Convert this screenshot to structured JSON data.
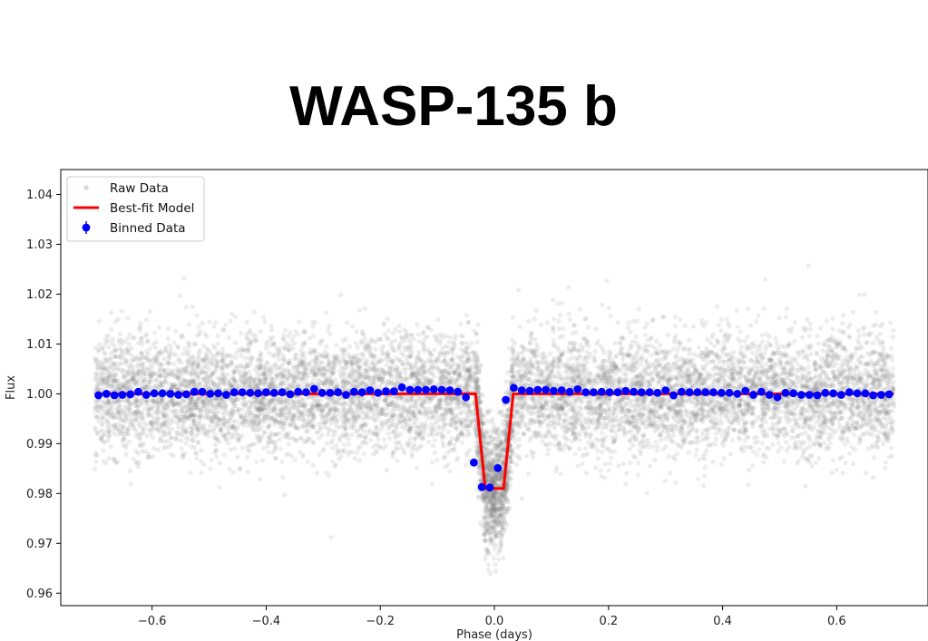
{
  "title": "WASP-135 b",
  "chart_data": {
    "type": "scatter",
    "title": "WASP-135 b",
    "xlabel": "Phase (days)",
    "ylabel": "Flux",
    "xlim": [
      -0.76,
      0.76
    ],
    "ylim": [
      0.9575,
      1.045
    ],
    "xticks": [
      -0.6,
      -0.4,
      -0.2,
      0.0,
      0.2,
      0.4,
      0.6
    ],
    "xtick_labels": [
      "−0.6",
      "−0.4",
      "−0.2",
      "0.0",
      "0.2",
      "0.4",
      "0.6"
    ],
    "yticks": [
      0.96,
      0.97,
      0.98,
      0.99,
      1.0,
      1.01,
      1.02,
      1.03,
      1.04
    ],
    "ytick_labels": [
      "0.96",
      "0.97",
      "0.98",
      "0.99",
      "1.00",
      "1.01",
      "1.02",
      "1.03",
      "1.04"
    ],
    "grid": false,
    "legend_position": "top-left",
    "transit": {
      "depth": 0.019,
      "center": 0.0,
      "ingress_start": 0.033,
      "flat_half_width": 0.016
    },
    "series": [
      {
        "name": "Raw Data",
        "kind": "scatter",
        "color": "#808080",
        "x_range": [
          -0.7,
          0.7
        ],
        "baseline": 1.0,
        "scatter_sd": 0.006
      },
      {
        "name": "Best-fit Model",
        "kind": "line",
        "color": "#ff0000",
        "x": [
          -0.7,
          -0.033,
          -0.016,
          0.016,
          0.033,
          0.7
        ],
        "y": [
          1.0,
          1.0,
          0.981,
          0.981,
          1.0,
          1.0
        ]
      },
      {
        "name": "Binned Data",
        "kind": "errorbar",
        "color": "#0000ff",
        "x": [
          -0.694,
          -0.68,
          -0.666,
          -0.652,
          -0.638,
          -0.624,
          -0.61,
          -0.596,
          -0.582,
          -0.568,
          -0.554,
          -0.54,
          -0.526,
          -0.512,
          -0.498,
          -0.484,
          -0.47,
          -0.456,
          -0.442,
          -0.428,
          -0.414,
          -0.4,
          -0.386,
          -0.372,
          -0.358,
          -0.344,
          -0.33,
          -0.316,
          -0.302,
          -0.288,
          -0.274,
          -0.26,
          -0.246,
          -0.232,
          -0.218,
          -0.204,
          -0.19,
          -0.176,
          -0.162,
          -0.148,
          -0.134,
          -0.12,
          -0.106,
          -0.092,
          -0.078,
          -0.064,
          -0.05,
          -0.036,
          -0.022,
          -0.008,
          0.006,
          0.02,
          0.034,
          0.048,
          0.062,
          0.076,
          0.09,
          0.104,
          0.118,
          0.132,
          0.146,
          0.16,
          0.174,
          0.188,
          0.202,
          0.216,
          0.23,
          0.244,
          0.258,
          0.272,
          0.286,
          0.3,
          0.314,
          0.328,
          0.342,
          0.356,
          0.37,
          0.384,
          0.398,
          0.412,
          0.426,
          0.44,
          0.454,
          0.468,
          0.482,
          0.496,
          0.51,
          0.524,
          0.538,
          0.552,
          0.566,
          0.58,
          0.594,
          0.608,
          0.622,
          0.636,
          0.65,
          0.664,
          0.678,
          0.692
        ],
        "y": [
          0.9997,
          1.0,
          0.9997,
          0.9998,
          0.9999,
          1.0004,
          0.9998,
          1.0001,
          1.0001,
          1.0,
          0.9998,
          0.9999,
          1.0004,
          1.0004,
          1.0,
          1.0001,
          0.9998,
          1.0003,
          1.0003,
          1.0002,
          1.0001,
          1.0003,
          1.0002,
          1.0003,
          0.9999,
          1.0004,
          1.0003,
          1.001,
          1.0002,
          1.0002,
          1.0003,
          0.9998,
          1.0004,
          1.0003,
          1.0007,
          1.0002,
          1.0005,
          1.0005,
          1.0013,
          1.0008,
          1.0008,
          1.0008,
          1.0009,
          1.0008,
          1.0007,
          1.0004,
          0.9993,
          0.9862,
          0.9813,
          0.9812,
          0.9851,
          0.9988,
          1.0012,
          1.0007,
          1.0006,
          1.0008,
          1.0008,
          1.0006,
          1.0007,
          1.0004,
          1.0009,
          1.0003,
          1.0003,
          1.0004,
          1.0003,
          1.0003,
          1.0006,
          1.0004,
          1.0003,
          1.0003,
          1.0002,
          1.0007,
          0.9997,
          1.0004,
          1.0003,
          1.0003,
          1.0003,
          1.0003,
          1.0002,
          1.0002,
          1.0,
          1.0006,
          0.9998,
          1.0004,
          0.9998,
          0.9993,
          1.0002,
          1.0001,
          0.9998,
          0.9998,
          0.9997,
          1.0002,
          1.0001,
          0.9998,
          1.0003,
          1.0001,
          1.0001,
          0.9997,
          0.9998,
          0.9999
        ]
      }
    ]
  }
}
